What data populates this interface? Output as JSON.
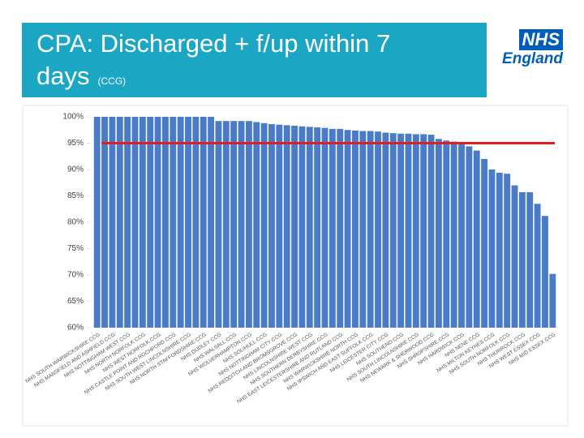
{
  "title": "CPA: Discharged + f/up within 7 days",
  "subtitle": "(CCG)",
  "logo": {
    "mark": "NHS",
    "text": "England"
  },
  "chart_data": {
    "type": "bar",
    "color": "#4a7bc8",
    "categories": [
      "NHS SOUTH WARWICKSHIRE CCG",
      null,
      "NHS MANSFIELD AND ASHFIELD CCG",
      null,
      "NHS NOTTINGHAM WEST CCG",
      null,
      "NHS NORTH NORFOLK CCG",
      null,
      "NHS WEST NORFOLK CCG",
      null,
      "NHS CASTLE POINT AND ROCHFORD CCG",
      null,
      "NHS SOUTH WEST LINCOLNSHIRE CCG",
      null,
      "NHS NORTH STAFFORDSHIRE CCG",
      null,
      "NHS DUDLEY CCG",
      null,
      "NHS WALSALL CCG",
      null,
      "NHS WOLVERHAMPTON CCG",
      null,
      "NHS SOLIHULL CCG",
      null,
      "NHS NOTTINGHAM CITY CCG",
      null,
      "NHS REDDITCH AND BROMSGROVE CCG",
      null,
      "NHS LINCOLNSHIRE WEST CCG",
      null,
      "NHS SOUTHERN DERBYSHIRE CCG",
      null,
      "NHS EAST LEICESTERSHIRE AND RUTLAND CCG",
      null,
      "NHS WARWICKSHIRE NORTH CCG",
      null,
      "NHS IPSWICH AND EAST SUFFOLK CCG",
      null,
      "NHS LEICESTER CITY CCG",
      null,
      "NHS SOUTHEND CCG",
      null,
      "NHS SOUTH LINCOLNSHIRE CCG",
      null,
      "NHS NEWARK & SHERWOOD CCG",
      null,
      "NHS SHROPSHIRE CCG",
      null,
      "NHS HARDWICK CCG",
      null,
      "NHS NENE CCG",
      null,
      "NHS MILTON KEYNES CCG",
      null,
      "NHS SOUTH NORFOLK CCG",
      null,
      "NHS THURROCK CCG",
      null,
      "NHS WEST ESSEX CCG",
      null,
      "NHS MID ESSEX CCG"
    ],
    "values": [
      100,
      100,
      100,
      100,
      100,
      100,
      100,
      100,
      100,
      100,
      100,
      100,
      100,
      100,
      100,
      100,
      99.2,
      99.2,
      99.2,
      99.2,
      99.2,
      99.0,
      98.8,
      98.6,
      98.5,
      98.4,
      98.3,
      98.2,
      98.1,
      98.0,
      97.9,
      97.7,
      97.7,
      97.5,
      97.4,
      97.3,
      97.3,
      97.2,
      97.0,
      96.9,
      96.8,
      96.8,
      96.7,
      96.7,
      96.6,
      95.8,
      95.5,
      95.3,
      94.8,
      94.4,
      93.6,
      92.0,
      90.0,
      89.4,
      89.2,
      87.0,
      85.7,
      85.7,
      83.5,
      81.2,
      70.2
    ],
    "target": 95,
    "target_color": "#e02020",
    "ylim": [
      60,
      100
    ],
    "yticks": [
      {
        "value": 60,
        "label": "60%"
      },
      {
        "value": 65,
        "label": "65%"
      },
      {
        "value": 70,
        "label": "70%"
      },
      {
        "value": 75,
        "label": "75%"
      },
      {
        "value": 80,
        "label": "80%"
      },
      {
        "value": 85,
        "label": "85%"
      },
      {
        "value": 90,
        "label": "90%"
      },
      {
        "value": 95,
        "label": "95%"
      },
      {
        "value": 100,
        "label": "100%"
      }
    ]
  }
}
